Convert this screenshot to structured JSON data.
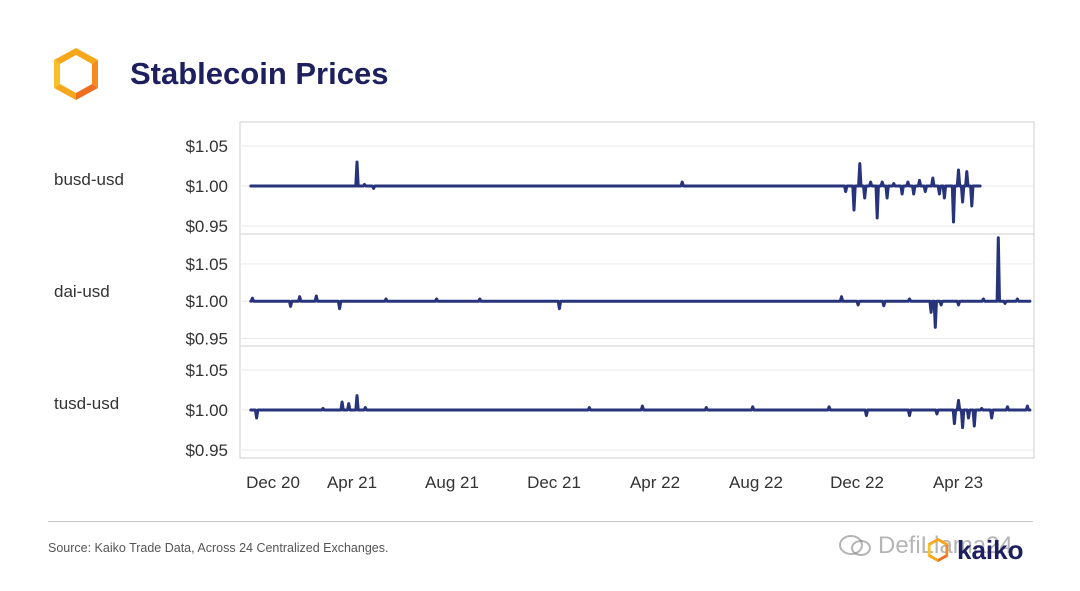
{
  "header": {
    "title": "Stablecoin Prices"
  },
  "footer": {
    "source": "Source: Kaiko Trade Data, Across 24 Centralized Exchanges.",
    "brand": "kaiko",
    "watermark": "DefiLlama24"
  },
  "chart_data": {
    "type": "line",
    "line_color": "#27337a",
    "x_ticks": [
      "Dec 20",
      "Apr 21",
      "Aug 21",
      "Dec 21",
      "Apr 22",
      "Aug 22",
      "Dec 22",
      "Apr 23"
    ],
    "x_range": [
      "2020-11-25",
      "2023-07-10"
    ],
    "grid": "horizontal",
    "panels": [
      {
        "name": "busd-usd",
        "ylim": [
          0.94,
          1.08
        ],
        "y_ticks": [
          {
            "value": 0.95,
            "label": "$0.95"
          },
          {
            "value": 1.0,
            "label": "$1.00"
          },
          {
            "value": 1.05,
            "label": "$1.05"
          }
        ],
        "start": "2020-12-08",
        "end": "2023-05-06",
        "baseline": 1.0,
        "events": [
          {
            "date": "2021-04-15",
            "value": 1.03
          },
          {
            "date": "2021-04-24",
            "value": 1.002
          },
          {
            "date": "2021-05-05",
            "value": 0.997
          },
          {
            "date": "2022-05-12",
            "value": 1.005
          },
          {
            "date": "2022-11-25",
            "value": 0.993
          },
          {
            "date": "2022-12-05",
            "value": 0.97
          },
          {
            "date": "2022-12-12",
            "value": 1.028
          },
          {
            "date": "2022-12-18",
            "value": 0.985
          },
          {
            "date": "2022-12-25",
            "value": 1.005
          },
          {
            "date": "2023-01-02",
            "value": 0.96
          },
          {
            "date": "2023-01-08",
            "value": 1.005
          },
          {
            "date": "2023-01-14",
            "value": 0.985
          },
          {
            "date": "2023-01-22",
            "value": 1.003
          },
          {
            "date": "2023-02-01",
            "value": 0.99
          },
          {
            "date": "2023-02-08",
            "value": 1.005
          },
          {
            "date": "2023-02-15",
            "value": 0.99
          },
          {
            "date": "2023-02-22",
            "value": 1.007
          },
          {
            "date": "2023-03-01",
            "value": 0.993
          },
          {
            "date": "2023-03-10",
            "value": 1.01
          },
          {
            "date": "2023-03-18",
            "value": 0.99
          },
          {
            "date": "2023-03-24",
            "value": 0.985
          },
          {
            "date": "2023-04-04",
            "value": 0.955
          },
          {
            "date": "2023-04-10",
            "value": 1.02
          },
          {
            "date": "2023-04-15",
            "value": 0.98
          },
          {
            "date": "2023-04-20",
            "value": 1.018
          },
          {
            "date": "2023-04-26",
            "value": 0.975
          }
        ]
      },
      {
        "name": "dai-usd",
        "ylim": [
          0.94,
          1.09
        ],
        "y_ticks": [
          {
            "value": 0.95,
            "label": "$0.95"
          },
          {
            "value": 1.0,
            "label": "$1.00"
          },
          {
            "value": 1.05,
            "label": "$1.05"
          }
        ],
        "start": "2020-12-08",
        "end": "2023-07-05",
        "baseline": 1.0,
        "events": [
          {
            "date": "2020-12-10",
            "value": 1.004
          },
          {
            "date": "2021-01-25",
            "value": 0.993
          },
          {
            "date": "2021-02-05",
            "value": 1.006
          },
          {
            "date": "2021-02-25",
            "value": 1.007
          },
          {
            "date": "2021-03-25",
            "value": 0.99
          },
          {
            "date": "2021-05-20",
            "value": 1.003
          },
          {
            "date": "2021-07-20",
            "value": 1.003
          },
          {
            "date": "2021-09-10",
            "value": 1.003
          },
          {
            "date": "2021-12-15",
            "value": 0.99
          },
          {
            "date": "2022-11-20",
            "value": 1.006
          },
          {
            "date": "2022-12-10",
            "value": 0.995
          },
          {
            "date": "2023-01-10",
            "value": 0.994
          },
          {
            "date": "2023-02-10",
            "value": 1.003
          },
          {
            "date": "2023-03-08",
            "value": 0.985
          },
          {
            "date": "2023-03-13",
            "value": 0.965
          },
          {
            "date": "2023-03-20",
            "value": 0.995
          },
          {
            "date": "2023-04-10",
            "value": 0.995
          },
          {
            "date": "2023-05-10",
            "value": 1.003
          },
          {
            "date": "2023-05-28",
            "value": 1.085
          },
          {
            "date": "2023-06-05",
            "value": 0.997
          },
          {
            "date": "2023-06-20",
            "value": 1.003
          }
        ]
      },
      {
        "name": "tusd-usd",
        "ylim": [
          0.94,
          1.08
        ],
        "y_ticks": [
          {
            "value": 0.95,
            "label": "$0.95"
          },
          {
            "value": 1.0,
            "label": "$1.00"
          },
          {
            "value": 1.05,
            "label": "$1.05"
          }
        ],
        "start": "2020-12-08",
        "end": "2023-07-05",
        "baseline": 1.0,
        "events": [
          {
            "date": "2020-12-15",
            "value": 0.99
          },
          {
            "date": "2021-03-05",
            "value": 1.002
          },
          {
            "date": "2021-03-28",
            "value": 1.01
          },
          {
            "date": "2021-04-05",
            "value": 1.008
          },
          {
            "date": "2021-04-15",
            "value": 1.018
          },
          {
            "date": "2021-04-25",
            "value": 1.003
          },
          {
            "date": "2022-01-20",
            "value": 1.003
          },
          {
            "date": "2022-03-25",
            "value": 1.005
          },
          {
            "date": "2022-06-10",
            "value": 1.003
          },
          {
            "date": "2022-08-05",
            "value": 1.004
          },
          {
            "date": "2022-11-05",
            "value": 1.004
          },
          {
            "date": "2022-12-20",
            "value": 0.993
          },
          {
            "date": "2023-02-10",
            "value": 0.993
          },
          {
            "date": "2023-03-15",
            "value": 0.995
          },
          {
            "date": "2023-04-05",
            "value": 0.983
          },
          {
            "date": "2023-04-10",
            "value": 1.012
          },
          {
            "date": "2023-04-15",
            "value": 0.978
          },
          {
            "date": "2023-04-22",
            "value": 0.99
          },
          {
            "date": "2023-04-29",
            "value": 0.98
          },
          {
            "date": "2023-05-08",
            "value": 1.002
          },
          {
            "date": "2023-05-20",
            "value": 0.99
          },
          {
            "date": "2023-06-08",
            "value": 1.004
          },
          {
            "date": "2023-07-02",
            "value": 1.005
          }
        ]
      }
    ]
  }
}
